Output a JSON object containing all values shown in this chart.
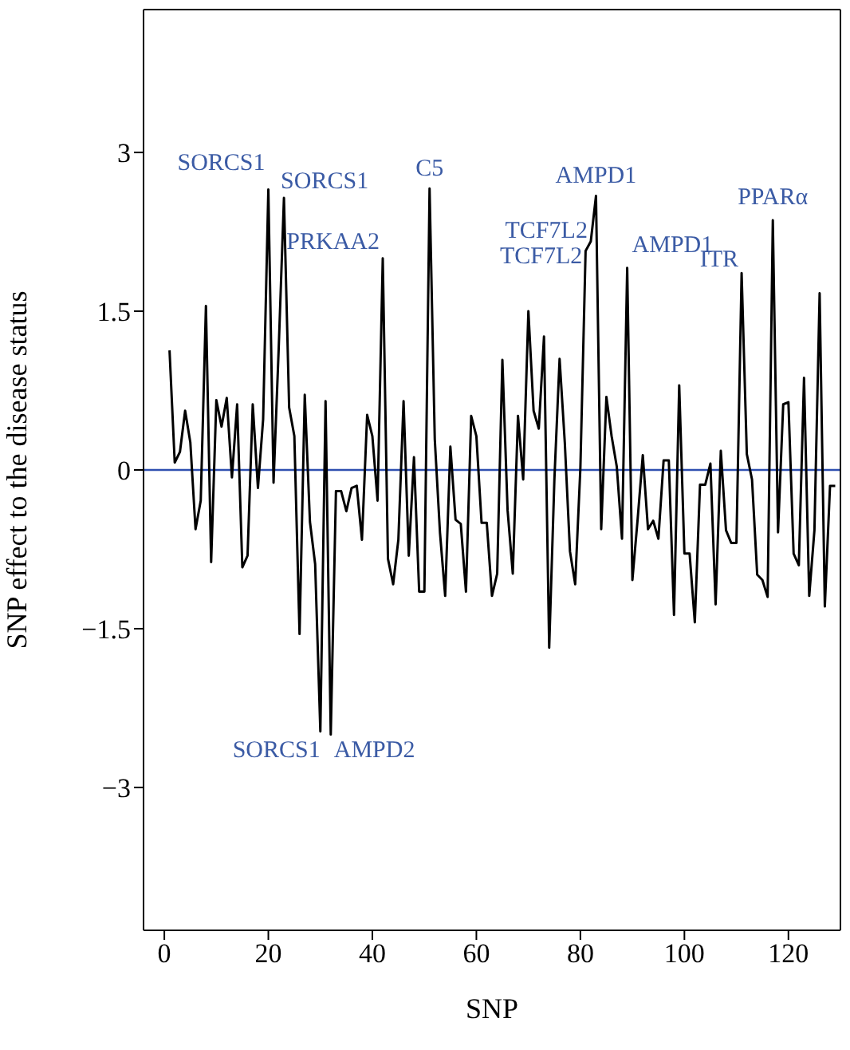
{
  "chart_data": {
    "type": "line",
    "xlabel": "SNP",
    "ylabel": "SNP effect to the disease status",
    "x": [
      1,
      2,
      3,
      4,
      5,
      6,
      7,
      8,
      9,
      10,
      11,
      12,
      13,
      14,
      15,
      16,
      17,
      18,
      19,
      20,
      21,
      22,
      23,
      24,
      25,
      26,
      27,
      28,
      29,
      30,
      31,
      32,
      33,
      34,
      35,
      36,
      37,
      38,
      39,
      40,
      41,
      42,
      43,
      44,
      45,
      46,
      47,
      48,
      49,
      50,
      51,
      52,
      53,
      54,
      55,
      56,
      57,
      58,
      59,
      60,
      61,
      62,
      63,
      64,
      65,
      66,
      67,
      68,
      69,
      70,
      71,
      72,
      73,
      74,
      75,
      76,
      77,
      78,
      79,
      80,
      81,
      82,
      83,
      84,
      85,
      86,
      87,
      88,
      89,
      90,
      91,
      92,
      93,
      94,
      95,
      96,
      97,
      98,
      99,
      100,
      101,
      102,
      103,
      104,
      105,
      106,
      107,
      108,
      109,
      110,
      111,
      112,
      113,
      114,
      115,
      116,
      117,
      118,
      119,
      120,
      121,
      122,
      123,
      124,
      125,
      126,
      127,
      128,
      129
    ],
    "series": [
      {
        "color": "#000000",
        "values": [
          1.13,
          0.07,
          0.17,
          0.56,
          0.26,
          -0.56,
          -0.29,
          1.55,
          -0.87,
          0.66,
          0.41,
          0.68,
          -0.07,
          0.62,
          -0.92,
          -0.81,
          0.62,
          -0.17,
          0.48,
          2.65,
          -0.12,
          1.16,
          2.57,
          0.59,
          0.32,
          -1.55,
          0.71,
          -0.49,
          -0.89,
          -2.47,
          0.65,
          -2.5,
          -0.2,
          -0.2,
          -0.39,
          -0.17,
          -0.15,
          -0.66,
          0.52,
          0.32,
          -0.29,
          2.0,
          -0.84,
          -1.08,
          -0.66,
          0.65,
          -0.81,
          0.12,
          -1.15,
          -1.15,
          2.66,
          0.29,
          -0.59,
          -1.19,
          0.22,
          -0.47,
          -0.51,
          -1.15,
          0.51,
          0.32,
          -0.5,
          -0.5,
          -1.19,
          -0.98,
          1.04,
          -0.38,
          -0.98,
          0.51,
          -0.09,
          1.5,
          0.56,
          0.39,
          1.26,
          -1.68,
          -0.09,
          1.05,
          0.26,
          -0.77,
          -1.08,
          0.02,
          2.07,
          2.16,
          2.59,
          -0.56,
          0.69,
          0.32,
          0.03,
          -0.65,
          1.91,
          -1.04,
          -0.47,
          0.14,
          -0.56,
          -0.48,
          -0.65,
          0.09,
          0.09,
          -1.37,
          0.8,
          -0.79,
          -0.79,
          -1.44,
          -0.14,
          -0.14,
          0.06,
          -1.27,
          0.18,
          -0.57,
          -0.69,
          -0.69,
          1.86,
          0.15,
          -0.09,
          -0.99,
          -1.04,
          -1.2,
          2.36,
          -0.59,
          0.62,
          0.64,
          -0.79,
          -0.9,
          0.87,
          -1.19,
          -0.57,
          1.67,
          -1.29,
          -0.15,
          -0.15
        ]
      }
    ],
    "xlim": [
      -4,
      130
    ],
    "xticks": [
      0,
      20,
      40,
      60,
      80,
      100,
      120
    ],
    "ylim": [
      -4.35,
      4.35
    ],
    "yticks": [
      {
        "value": -3,
        "label": "−3"
      },
      {
        "value": -1.5,
        "label": "−1.5"
      },
      0,
      1.5,
      3
    ],
    "ref_lines": [
      {
        "axis": "y",
        "value": 0,
        "color": "#2f4fb0"
      }
    ],
    "grid": false,
    "marker": "none",
    "line_style": "solid",
    "annotations": [
      {
        "text": "SORCS1",
        "x": 20,
        "y": 2.65
      },
      {
        "text": "SORCS1",
        "x": 23,
        "y": 2.57
      },
      {
        "text": "PRKAA2",
        "x": 42,
        "y": 2.0
      },
      {
        "text": "C5",
        "x": 51,
        "y": 2.66
      },
      {
        "text": "TCF7L2",
        "x": 81,
        "y": 2.07
      },
      {
        "text": "TCF7L2",
        "x": 82,
        "y": 2.16
      },
      {
        "text": "AMPD1",
        "x": 83,
        "y": 2.59
      },
      {
        "text": "AMPD1",
        "x": 89,
        "y": 1.91
      },
      {
        "text": "ITR",
        "x": 111,
        "y": 1.86
      },
      {
        "text": "PPARα",
        "x": 117,
        "y": 2.36
      },
      {
        "text": "SORCS1",
        "x": 30,
        "y": -2.47
      },
      {
        "text": "AMPD2",
        "x": 32,
        "y": -2.5
      }
    ]
  }
}
